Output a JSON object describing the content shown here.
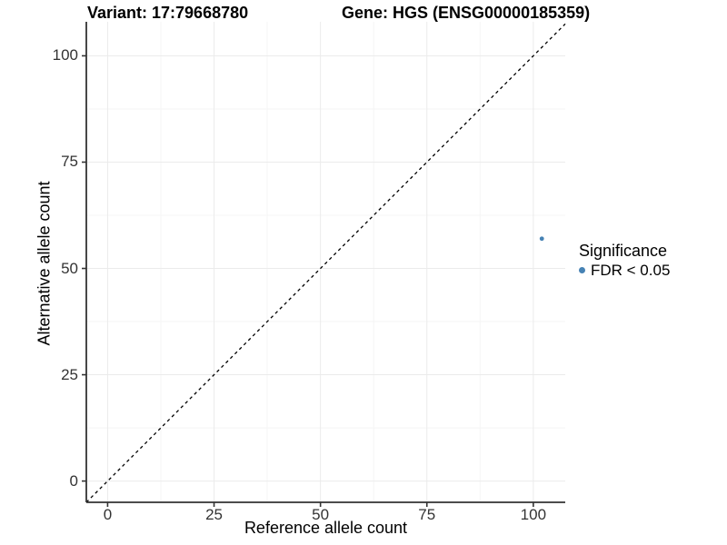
{
  "chart_data": {
    "type": "scatter",
    "title_variant": "Variant: 17:79668780",
    "title_gene": "Gene: HGS (ENSG00000185359)",
    "xlabel": "Reference allele count",
    "ylabel": "Alternative allele count",
    "xticks": [
      0,
      25,
      50,
      75,
      100
    ],
    "yticks": [
      0,
      25,
      50,
      75,
      100
    ],
    "x_minor_ticks": [
      12.5,
      37.5,
      62.5,
      87.5
    ],
    "y_minor_ticks": [
      12.5,
      37.5,
      62.5,
      87.5
    ],
    "xlim": [
      -5,
      107.5
    ],
    "ylim": [
      -5,
      108
    ],
    "grid": true,
    "points": [
      {
        "x": 102,
        "y": 57,
        "group": "FDR < 0.05"
      }
    ],
    "point_color": "#4682b4",
    "point_radius": 2.4,
    "reference_line": {
      "type": "identity",
      "style": "dashed",
      "color": "#000000"
    },
    "legend": {
      "position": "right",
      "title": "Significance",
      "items": [
        {
          "label": "FDR < 0.05",
          "color": "#4682b4"
        }
      ]
    },
    "colors": {
      "axis": "#333333",
      "tick_text": "#333333",
      "grid_major": "#ebebeb",
      "grid_minor": "#f5f5f5",
      "background": "#ffffff"
    }
  }
}
